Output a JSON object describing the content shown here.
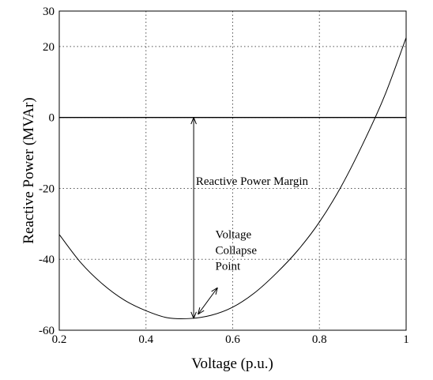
{
  "chart_data": {
    "type": "line",
    "title": "",
    "xlabel": "Voltage (p.u.)",
    "ylabel": "Reactive Power (MVAr)",
    "xlim": [
      0.2,
      1.0
    ],
    "ylim": [
      -60,
      30
    ],
    "grid": true,
    "x_ticks": [
      0.2,
      0.4,
      0.6,
      0.8,
      1.0
    ],
    "x_tick_labels": [
      "0.2",
      "0.4",
      "0.6",
      "0.8",
      "1"
    ],
    "y_ticks": [
      -60,
      -40,
      -20,
      0,
      20,
      30
    ],
    "y_tick_labels": [
      "-60",
      "-40",
      "-20",
      "0",
      "20",
      "30"
    ],
    "series": [
      {
        "x": [
          0.2,
          0.25,
          0.3,
          0.35,
          0.4,
          0.45,
          0.5,
          0.55,
          0.6,
          0.65,
          0.7,
          0.75,
          0.8,
          0.85,
          0.9,
          0.95,
          1.0
        ],
        "values": [
          -33,
          -41,
          -47,
          -51.5,
          -54.5,
          -56.5,
          -56.7,
          -55.8,
          -53.5,
          -49.5,
          -44,
          -37.5,
          -29.5,
          -19.5,
          -7.5,
          6,
          22.5
        ]
      }
    ],
    "reference_line": {
      "y": 0
    },
    "margin_arrow": {
      "x": 0.51,
      "y_from": -56.7,
      "y_to": 0
    },
    "collapse_arrow": {
      "x_from": 0.52,
      "y_from": -55.5,
      "x_to": 0.565,
      "y_to": -48
    },
    "annotations": [
      {
        "text": "Reactive Power Margin",
        "x": 0.515,
        "y": -19
      },
      {
        "text": "Voltage",
        "x": 0.56,
        "y": -34
      },
      {
        "text": "Collapse",
        "x": 0.56,
        "y": -38.5
      },
      {
        "text": "Point",
        "x": 0.56,
        "y": -43
      }
    ]
  }
}
